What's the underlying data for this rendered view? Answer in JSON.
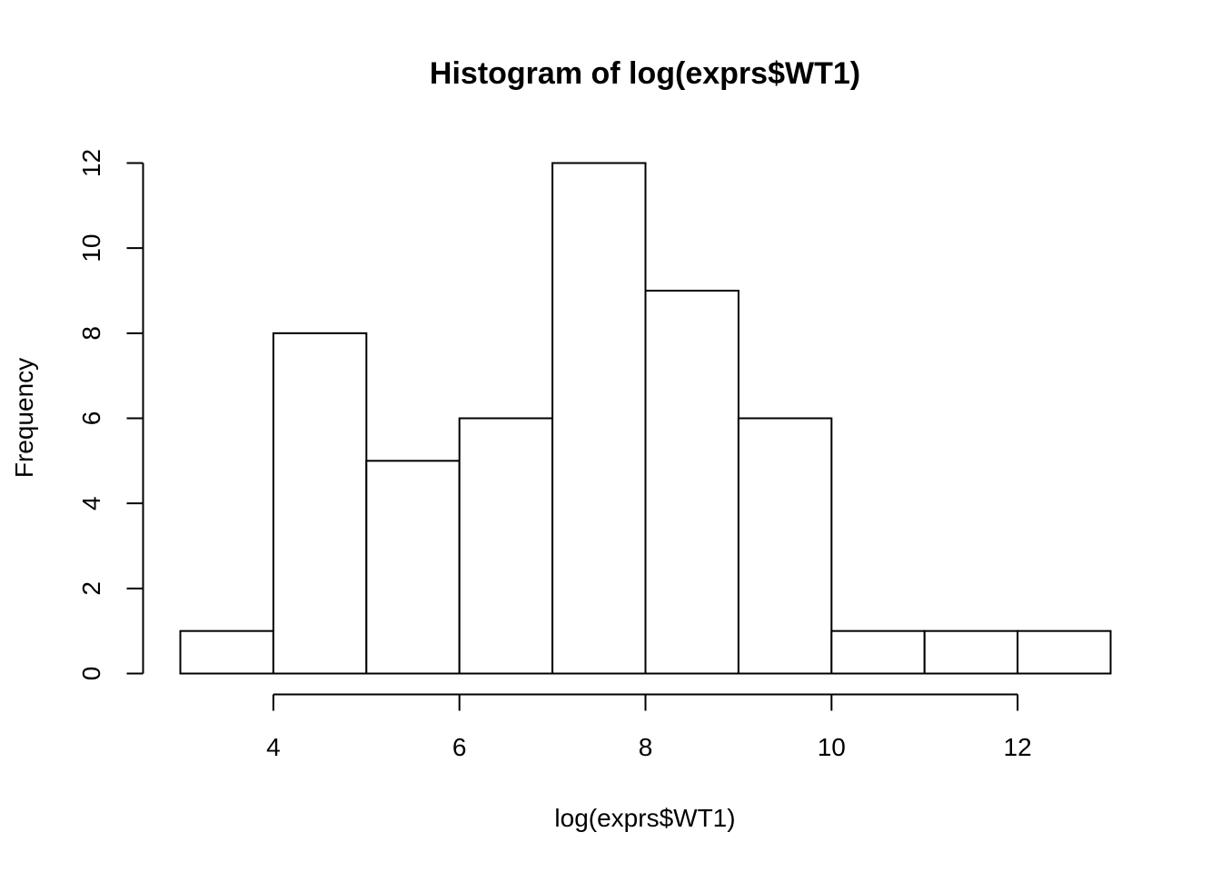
{
  "chart_data": {
    "type": "bar",
    "subtype": "histogram",
    "title": "Histogram of log(exprs$WT1)",
    "xlabel": "log(exprs$WT1)",
    "ylabel": "Frequency",
    "bins": [
      {
        "start": 3,
        "end": 4,
        "count": 1
      },
      {
        "start": 4,
        "end": 5,
        "count": 8
      },
      {
        "start": 5,
        "end": 6,
        "count": 5
      },
      {
        "start": 6,
        "end": 7,
        "count": 6
      },
      {
        "start": 7,
        "end": 8,
        "count": 12
      },
      {
        "start": 8,
        "end": 9,
        "count": 9
      },
      {
        "start": 9,
        "end": 10,
        "count": 6
      },
      {
        "start": 10,
        "end": 11,
        "count": 1
      },
      {
        "start": 11,
        "end": 12,
        "count": 1
      },
      {
        "start": 12,
        "end": 13,
        "count": 1
      }
    ],
    "xlim": [
      3,
      13
    ],
    "ylim": [
      0,
      12
    ],
    "x_ticks": [
      4,
      6,
      8,
      10,
      12
    ],
    "y_ticks": [
      0,
      2,
      4,
      6,
      8,
      10,
      12
    ],
    "grid": false,
    "bar_fill": "#ffffff",
    "bar_stroke": "#000000"
  }
}
